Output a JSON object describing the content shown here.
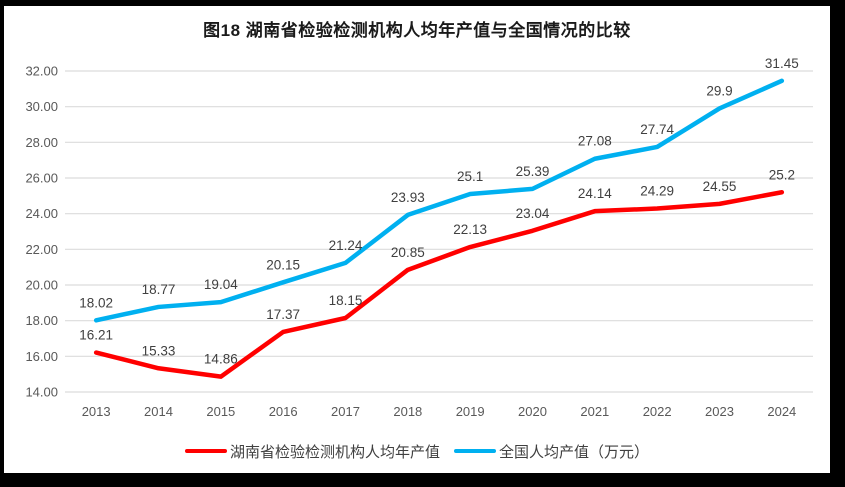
{
  "chart_data": {
    "type": "line",
    "title": "图18 湖南省检验检测机构人均年产值与全国情况的比较",
    "categories": [
      "2013",
      "2014",
      "2015",
      "2016",
      "2017",
      "2018",
      "2019",
      "2020",
      "2021",
      "2022",
      "2023",
      "2024"
    ],
    "series": [
      {
        "id": "hunan",
        "name": "湖南省检验检测机构人均年产值",
        "color": "#FF0000",
        "values": [
          16.21,
          15.33,
          14.86,
          17.37,
          18.15,
          20.85,
          22.13,
          23.04,
          24.14,
          24.29,
          24.55,
          25.2
        ]
      },
      {
        "id": "national",
        "name": "全国人均产值（万元）",
        "color": "#00B0F0",
        "values": [
          18.02,
          18.77,
          19.04,
          20.15,
          21.24,
          23.93,
          25.1,
          25.39,
          27.08,
          27.74,
          29.9,
          31.45
        ]
      }
    ],
    "y_ticks": [
      "14.00",
      "16.00",
      "18.00",
      "20.00",
      "22.00",
      "24.00",
      "26.00",
      "28.00",
      "30.00",
      "32.00"
    ],
    "ylim": [
      14,
      32
    ],
    "grid": true,
    "legend_position": "bottom",
    "data_labels": true,
    "colors": {
      "grid": "#DCDCDC",
      "axis_text": "#595959",
      "label_text": "#404040",
      "title_text": "#1A1A1A",
      "frame": "#000000",
      "background": "#FFFFFF"
    }
  },
  "legend": {
    "items": [
      {
        "label": "湖南省检验检测机构人均年产值",
        "color": "#FF0000"
      },
      {
        "label": "全国人均产值（万元）",
        "color": "#00B0F0"
      }
    ]
  }
}
